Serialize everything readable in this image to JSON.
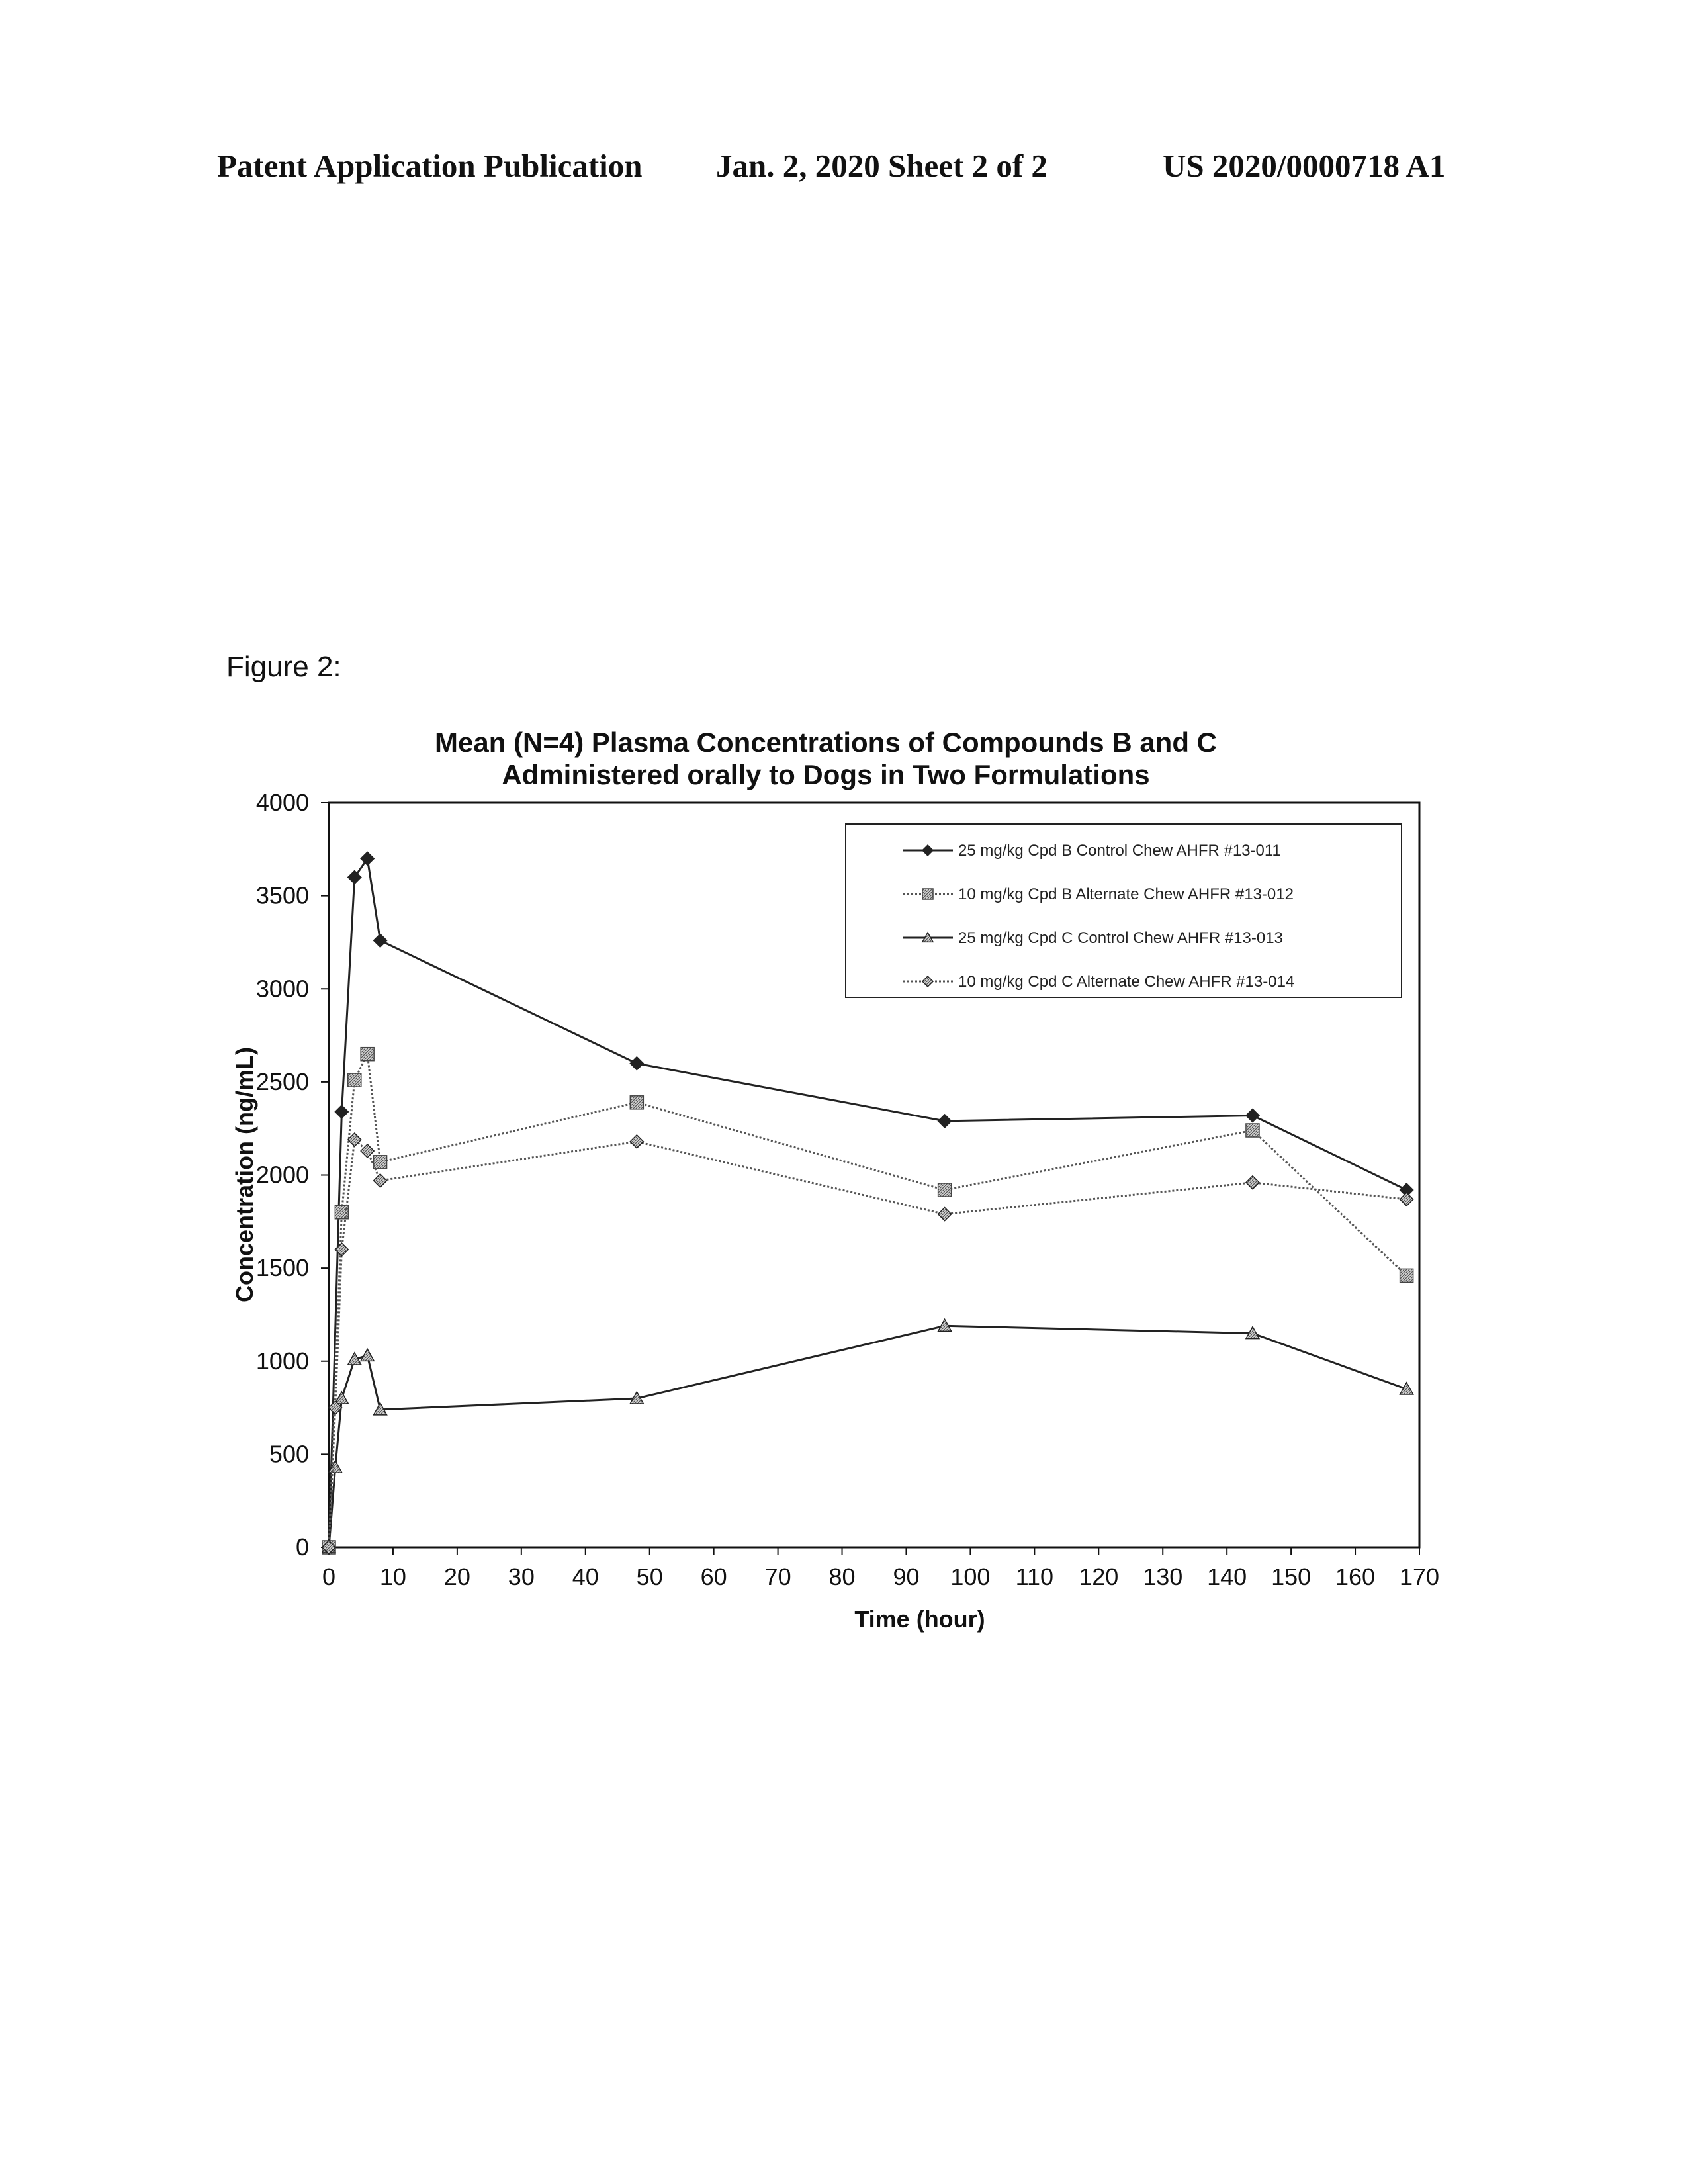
{
  "header": {
    "left": "Patent Application Publication",
    "middle": "Jan. 2, 2020   Sheet 2 of 2",
    "right": "US 2020/0000718 A1"
  },
  "figure_label": "Figure 2:",
  "chart_data": {
    "type": "line",
    "title": "Mean (N=4) Plasma Concentrations of Compounds B and C",
    "subtitle": "Administered orally to Dogs in Two Formulations",
    "xlabel": "Time (hour)",
    "ylabel": "Concentration (ng/mL)",
    "xlim": [
      0,
      170
    ],
    "ylim": [
      0,
      4000
    ],
    "xticks": [
      0,
      10,
      20,
      30,
      40,
      50,
      60,
      70,
      80,
      90,
      100,
      110,
      120,
      130,
      140,
      150,
      160,
      170
    ],
    "yticks": [
      0,
      500,
      1000,
      1500,
      2000,
      2500,
      3000,
      3500,
      4000
    ],
    "grid": false,
    "legend_position": "top-right",
    "series": [
      {
        "name": "25 mg/kg Cpd B Control Chew AHFR #13-011",
        "marker": "diamond",
        "style": "solid",
        "color": "#222222",
        "points": [
          [
            0,
            0
          ],
          [
            2,
            2340
          ],
          [
            4,
            3600
          ],
          [
            6,
            3700
          ],
          [
            8,
            3260
          ],
          [
            48,
            2600
          ],
          [
            96,
            2290
          ],
          [
            144,
            2320
          ],
          [
            168,
            1920
          ]
        ]
      },
      {
        "name": "10 mg/kg Cpd B Alternate Chew AHFR #13-012",
        "marker": "square-hatched",
        "style": "dotted",
        "color": "#555555",
        "points": [
          [
            0,
            0
          ],
          [
            2,
            1800
          ],
          [
            4,
            2510
          ],
          [
            6,
            2650
          ],
          [
            8,
            2070
          ],
          [
            48,
            2390
          ],
          [
            96,
            1920
          ],
          [
            144,
            2240
          ],
          [
            168,
            1460
          ]
        ]
      },
      {
        "name": "25 mg/kg Cpd C Control Chew AHFR #13-013",
        "marker": "triangle",
        "style": "solid",
        "color": "#222222",
        "points": [
          [
            0,
            0
          ],
          [
            1,
            430
          ],
          [
            2,
            800
          ],
          [
            4,
            1010
          ],
          [
            6,
            1030
          ],
          [
            8,
            740
          ],
          [
            48,
            800
          ],
          [
            96,
            1190
          ],
          [
            144,
            1150
          ],
          [
            168,
            850
          ]
        ]
      },
      {
        "name": "10 mg/kg Cpd C Alternate Chew AHFR #13-014",
        "marker": "diamond-hatched",
        "style": "dotted",
        "color": "#555555",
        "points": [
          [
            0,
            0
          ],
          [
            1,
            750
          ],
          [
            2,
            1600
          ],
          [
            4,
            2190
          ],
          [
            6,
            2130
          ],
          [
            8,
            1970
          ],
          [
            48,
            2180
          ],
          [
            96,
            1790
          ],
          [
            144,
            1960
          ],
          [
            168,
            1870
          ]
        ]
      }
    ]
  }
}
